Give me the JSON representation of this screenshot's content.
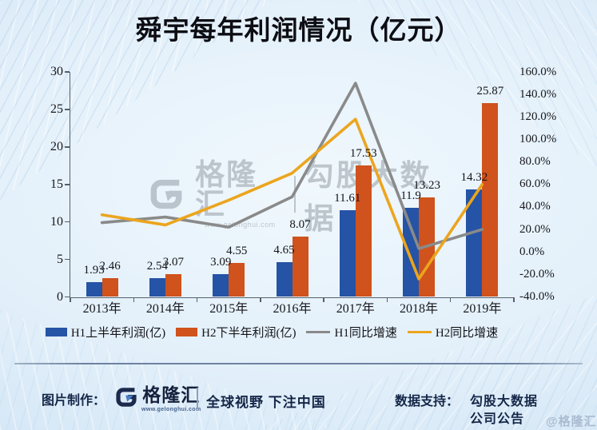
{
  "title": "舜宇每年利润情况（亿元）",
  "watermark": {
    "brand": "格隆汇",
    "url": "www.gelonghui.com",
    "partner": "勾股大数据"
  },
  "footer": {
    "made_by_label": "图片制作：",
    "brand": "格隆汇",
    "brand_url": "www.gelonghui.com",
    "slogan": "全球视野 下注中国",
    "data_support_label": "数据支持：",
    "data_support_line1": "勾股大数据",
    "data_support_line2": "公司公告",
    "corner_watermark": "@格隆汇"
  },
  "icons": [
    "gelonghui-logo",
    "gelonghui-logo-watermark"
  ],
  "colors": {
    "h1_bar": "#2553A5",
    "h2_bar": "#D0521C",
    "h1_line": "#8A8A8A",
    "h2_line": "#ECA51E",
    "axis": "#55606e",
    "footer_navy": "#15213d"
  },
  "chart_data": {
    "type": "bar",
    "subtype": "combo dual-axis: grouped bars (left axis) + lines (right % axis)",
    "title": "舜宇每年利润情况（亿元）",
    "categories": [
      "2013年",
      "2014年",
      "2015年",
      "2016年",
      "2017年",
      "2018年",
      "2019年"
    ],
    "series": [
      {
        "name": "H1上半年利润(亿)",
        "chart": "bar",
        "axis": "left",
        "color": "#2553A5",
        "values": [
          1.93,
          2.54,
          3.09,
          4.65,
          11.61,
          11.9,
          14.32
        ],
        "labels": [
          "1.93",
          "2.54",
          "3.09",
          "4.65",
          "11.61",
          "11.9",
          "14.32"
        ]
      },
      {
        "name": "H2下半年利润(亿)",
        "chart": "bar",
        "axis": "left",
        "color": "#D0521C",
        "values": [
          2.46,
          3.07,
          4.55,
          8.07,
          17.53,
          13.23,
          25.87
        ],
        "labels": [
          "2.46",
          "3.07",
          "4.55",
          "8.07",
          "17.53",
          "13.23",
          "25.87"
        ]
      },
      {
        "name": "H1同比增速",
        "chart": "line",
        "axis": "right",
        "color": "#8A8A8A",
        "values_pct": [
          26,
          31,
          22,
          49,
          150,
          3,
          20
        ]
      },
      {
        "name": "H2同比增速",
        "chart": "line",
        "axis": "right",
        "color": "#ECA51E",
        "values_pct": [
          33,
          24,
          46,
          70,
          118,
          -24,
          60
        ]
      }
    ],
    "left_axis": {
      "min": 0,
      "max": 30,
      "step": 5,
      "tick_labels": [
        "30",
        "25",
        "20",
        "15",
        "10",
        "5",
        "0"
      ]
    },
    "right_axis": {
      "min": -40,
      "max": 160,
      "step": 20,
      "tick_labels": [
        "160.0%",
        "140.0%",
        "120.0%",
        "100.0%",
        "80.0%",
        "60.0%",
        "40.0%",
        "20.0%",
        "0.0%",
        "-20.0%",
        "-40.0%"
      ]
    },
    "grid": false,
    "legend_position": "bottom",
    "bar_value_labels_shown": true
  }
}
